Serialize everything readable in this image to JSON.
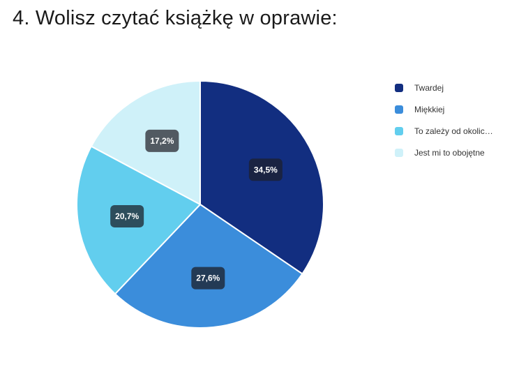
{
  "question": {
    "title": "4. Wolisz czytać książkę w oprawie:"
  },
  "chart_data": {
    "type": "pie",
    "categories": [
      "Twardej",
      "Miękkiej",
      "To zależy od okolic…",
      "Jest mi to obojętne"
    ],
    "values": [
      34.5,
      27.6,
      20.7,
      17.2
    ],
    "labels": [
      "34,5%",
      "27,6%",
      "20,7%",
      "17,2%"
    ],
    "colors": [
      "#122e80",
      "#3b8ddb",
      "#62ceee",
      "#cff1f9"
    ],
    "label_box_colors": [
      "#1a2342",
      "#233a55",
      "#2d4d5c",
      "#525a62"
    ],
    "start_angle": "12 o'clock, clockwise",
    "legend_position": "right"
  }
}
